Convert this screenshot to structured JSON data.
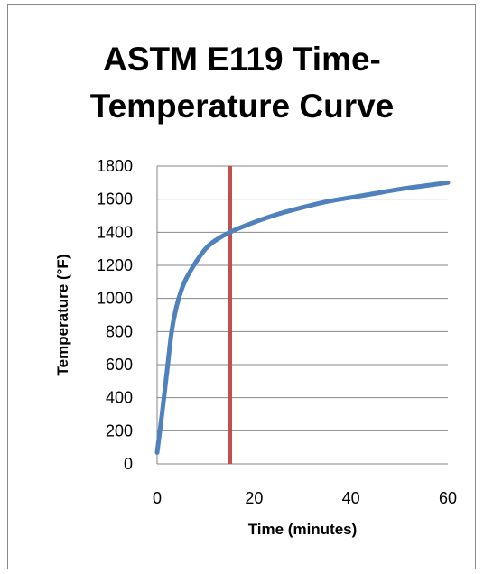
{
  "chart_data": {
    "type": "line",
    "title": "ASTM E119 Time-\nTemperature Curve",
    "xlabel": "Time (minutes)",
    "ylabel": "Temperature (°F)",
    "xlim": [
      0,
      60
    ],
    "ylim": [
      0,
      1800
    ],
    "x_ticks": [
      0,
      20,
      40,
      60
    ],
    "y_ticks": [
      0,
      200,
      400,
      600,
      800,
      1000,
      1200,
      1400,
      1600,
      1800
    ],
    "grid": "horizontal",
    "legend": "none",
    "series": [
      {
        "color": "#4f81bd",
        "x": [
          0,
          1,
          2,
          3,
          4,
          5,
          6,
          8,
          10,
          12,
          15,
          20,
          25,
          30,
          35,
          40,
          45,
          50,
          55,
          60
        ],
        "y": [
          68,
          300,
          550,
          800,
          950,
          1050,
          1120,
          1220,
          1300,
          1350,
          1400,
          1460,
          1510,
          1550,
          1585,
          1610,
          1635,
          1660,
          1680,
          1700
        ]
      }
    ],
    "reference_line": {
      "orientation": "vertical",
      "x": 15,
      "color": "#c0504d"
    }
  }
}
